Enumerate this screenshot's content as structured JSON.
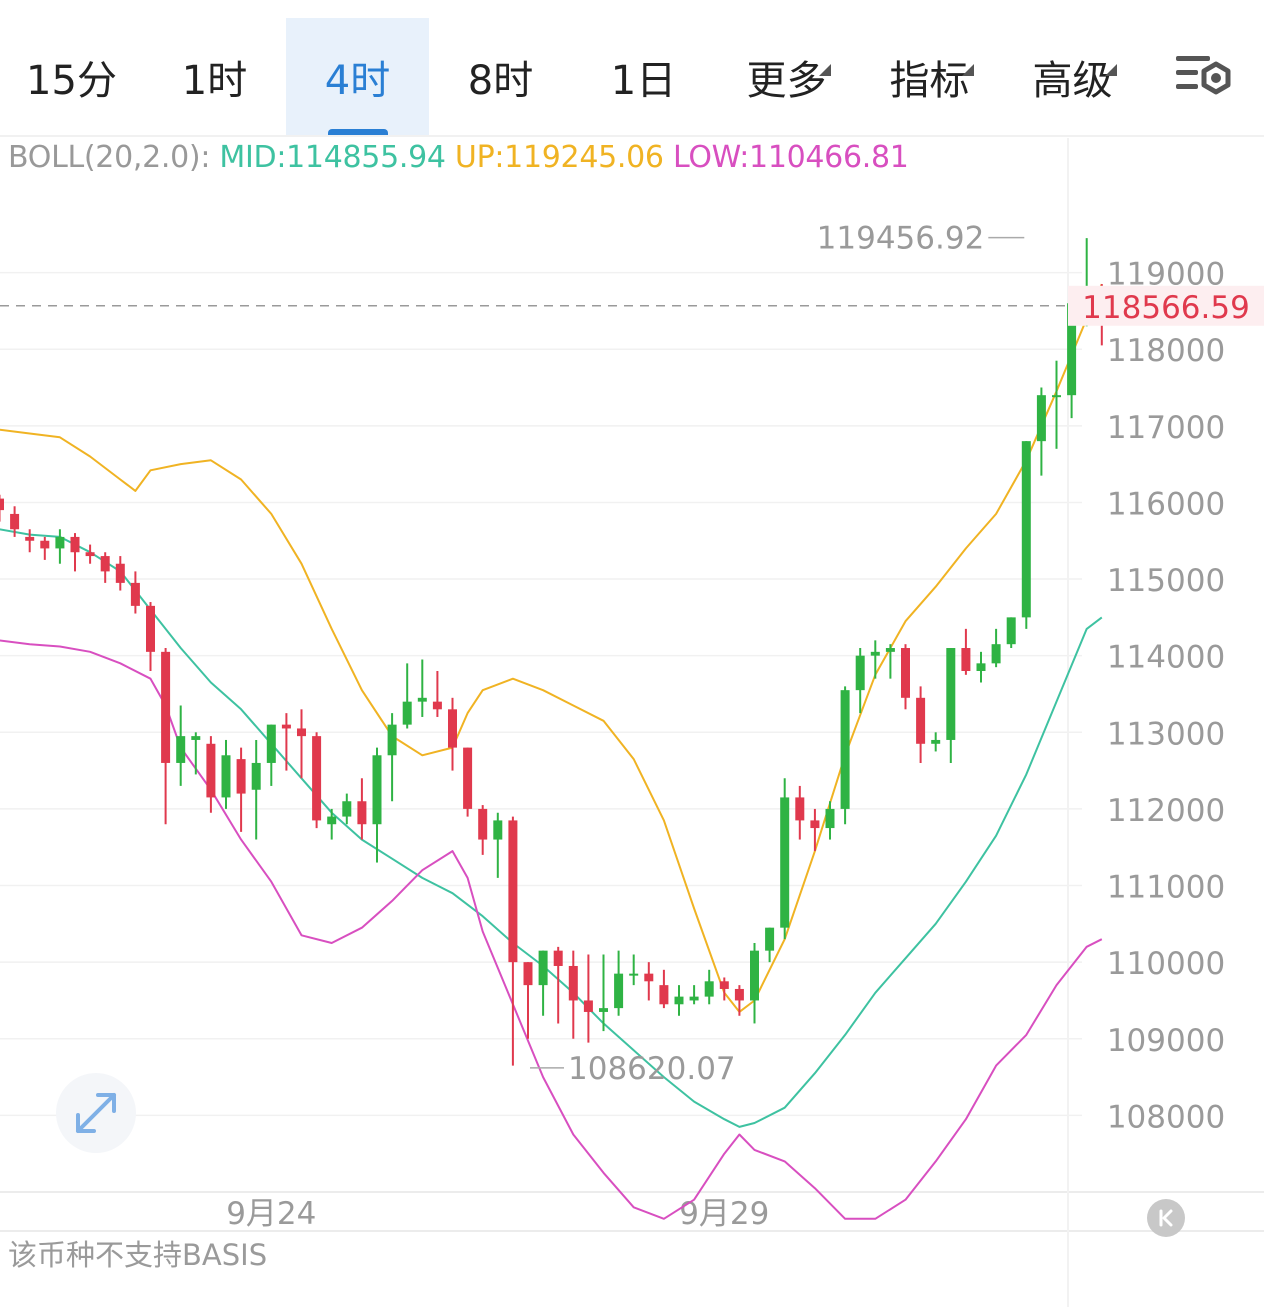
{
  "tabs": [
    {
      "label": "15分",
      "active": false,
      "dropdown": false
    },
    {
      "label": "1时",
      "active": false,
      "dropdown": false
    },
    {
      "label": "4时",
      "active": true,
      "dropdown": false
    },
    {
      "label": "8时",
      "active": false,
      "dropdown": false
    },
    {
      "label": "1日",
      "active": false,
      "dropdown": false
    },
    {
      "label": "更多",
      "active": false,
      "dropdown": true
    },
    {
      "label": "指标",
      "active": false,
      "dropdown": true
    },
    {
      "label": "高级",
      "active": false,
      "dropdown": true
    }
  ],
  "settings_icon": "chart-settings-icon",
  "indicator": {
    "name": "BOLL(20,2.0):",
    "mid_label": "MID:114855.94",
    "up_label": "UP:119245.06",
    "low_label": "LOW:110466.81"
  },
  "colors": {
    "up": "#2fb344",
    "down": "#e0394d",
    "mid": "#3ec2a1",
    "upper": "#f0b323",
    "lower": "#d84fc0",
    "current_price": "#e0394d",
    "accent": "#2a7fd4"
  },
  "footer_note": "该币种不支持BASIS",
  "chart_data": {
    "type": "candlestick",
    "interval": "4时",
    "ylim": [
      107000,
      120600
    ],
    "y_ticks": [
      108000,
      109000,
      110000,
      111000,
      112000,
      113000,
      114000,
      115000,
      116000,
      117000,
      118000,
      119000
    ],
    "y_tick_labels": [
      "108000",
      "109000",
      "110000",
      "111000",
      "112000",
      "113000",
      "114000",
      "115000",
      "116000",
      "117000",
      "118000",
      "119000"
    ],
    "x_labels": [
      {
        "index": 18,
        "label": "9月24"
      },
      {
        "index": 48,
        "label": "9月29"
      }
    ],
    "current_price": 118566.59,
    "current_price_label": "118566.59",
    "high_marker": {
      "index": 68,
      "value": 119456.92,
      "label": "119456.92"
    },
    "low_marker": {
      "index": 35,
      "value": 108620.07,
      "label": "108620.07"
    },
    "candles": [
      [
        116050,
        115900,
        116100,
        115750
      ],
      [
        115850,
        115650,
        115950,
        115550
      ],
      [
        115550,
        115500,
        115650,
        115350
      ],
      [
        115500,
        115400,
        115550,
        115250
      ],
      [
        115400,
        115550,
        115650,
        115200
      ],
      [
        115550,
        115350,
        115600,
        115100
      ],
      [
        115350,
        115300,
        115450,
        115200
      ],
      [
        115300,
        115100,
        115350,
        114950
      ],
      [
        115200,
        114950,
        115300,
        114850
      ],
      [
        114950,
        114650,
        115100,
        114550
      ],
      [
        114650,
        114050,
        114700,
        113800
      ],
      [
        114050,
        112600,
        114100,
        111800
      ],
      [
        112600,
        112950,
        113350,
        112300
      ],
      [
        112900,
        112950,
        113000,
        112450
      ],
      [
        112850,
        112150,
        112950,
        111950
      ],
      [
        112150,
        112700,
        112900,
        112000
      ],
      [
        112650,
        112200,
        112800,
        111700
      ],
      [
        112250,
        112600,
        112900,
        111600
      ],
      [
        112600,
        113100,
        113100,
        112300
      ],
      [
        113100,
        113050,
        113250,
        112500
      ],
      [
        113050,
        112950,
        113300,
        112400
      ],
      [
        112950,
        111850,
        113000,
        111750
      ],
      [
        111800,
        111900,
        112000,
        111600
      ],
      [
        111900,
        112100,
        112200,
        111800
      ],
      [
        112100,
        111800,
        112400,
        111600
      ],
      [
        111800,
        112700,
        112800,
        111300
      ],
      [
        112700,
        113100,
        113250,
        112100
      ],
      [
        113100,
        113400,
        113900,
        113050
      ],
      [
        113400,
        113450,
        113950,
        113200
      ],
      [
        113400,
        113300,
        113800,
        113200
      ],
      [
        113300,
        112800,
        113450,
        112500
      ],
      [
        112800,
        112000,
        112800,
        111900
      ],
      [
        112000,
        111600,
        112050,
        111400
      ],
      [
        111600,
        111850,
        111950,
        111100
      ],
      [
        111850,
        110000,
        111900,
        108650
      ],
      [
        110000,
        109700,
        110000,
        109000
      ],
      [
        109700,
        110150,
        110150,
        109300
      ],
      [
        110150,
        109950,
        110200,
        109200
      ],
      [
        109950,
        109500,
        110150,
        109000
      ],
      [
        109500,
        109350,
        110100,
        108950
      ],
      [
        109350,
        109400,
        110100,
        109100
      ],
      [
        109400,
        109850,
        110150,
        109300
      ],
      [
        109850,
        109850,
        110100,
        109700
      ],
      [
        109850,
        109750,
        110000,
        109500
      ],
      [
        109700,
        109450,
        109900,
        109400
      ],
      [
        109450,
        109550,
        109700,
        109300
      ],
      [
        109500,
        109550,
        109700,
        109450
      ],
      [
        109550,
        109750,
        109900,
        109450
      ],
      [
        109750,
        109650,
        109800,
        109500
      ],
      [
        109650,
        109500,
        109700,
        109300
      ],
      [
        109500,
        110150,
        110250,
        109200
      ],
      [
        110150,
        110450,
        110450,
        110000
      ],
      [
        110450,
        112150,
        112400,
        110300
      ],
      [
        112150,
        111850,
        112300,
        111600
      ],
      [
        111850,
        111750,
        112000,
        111450
      ],
      [
        111750,
        112000,
        112100,
        111600
      ],
      [
        112000,
        113550,
        113600,
        111800
      ],
      [
        113550,
        114000,
        114100,
        113250
      ],
      [
        114000,
        114050,
        114200,
        113700
      ],
      [
        114050,
        114100,
        114150,
        113700
      ],
      [
        114100,
        113450,
        114150,
        113300
      ],
      [
        113450,
        112850,
        113600,
        112600
      ],
      [
        112850,
        112900,
        113000,
        112750
      ],
      [
        112900,
        114100,
        114100,
        112600
      ],
      [
        114100,
        113800,
        114350,
        113750
      ],
      [
        113800,
        113900,
        114050,
        113650
      ],
      [
        113900,
        114150,
        114350,
        113850
      ],
      [
        114150,
        114500,
        114500,
        114100
      ],
      [
        114500,
        116800,
        116800,
        114350
      ],
      [
        116800,
        117400,
        117500,
        116350
      ],
      [
        117400,
        117400,
        117850,
        116700
      ],
      [
        117400,
        118600,
        118600,
        117100
      ],
      [
        118500,
        118650,
        119450,
        118300
      ],
      [
        118650,
        118550,
        118850,
        118050
      ]
    ],
    "mid": [
      [
        0,
        115650
      ],
      [
        2,
        115580
      ],
      [
        4,
        115550
      ],
      [
        6,
        115350
      ],
      [
        8,
        115100
      ],
      [
        10,
        114600
      ],
      [
        12,
        114100
      ],
      [
        14,
        113650
      ],
      [
        16,
        113300
      ],
      [
        18,
        112850
      ],
      [
        20,
        112400
      ],
      [
        22,
        111950
      ],
      [
        24,
        111600
      ],
      [
        26,
        111350
      ],
      [
        28,
        111100
      ],
      [
        30,
        110900
      ],
      [
        32,
        110600
      ],
      [
        34,
        110250
      ],
      [
        36,
        109950
      ],
      [
        38,
        109600
      ],
      [
        40,
        109200
      ],
      [
        42,
        108850
      ],
      [
        44,
        108500
      ],
      [
        46,
        108180
      ],
      [
        48,
        107950
      ],
      [
        49,
        107850
      ],
      [
        50,
        107900
      ],
      [
        52,
        108100
      ],
      [
        54,
        108550
      ],
      [
        56,
        109050
      ],
      [
        58,
        109600
      ],
      [
        60,
        110050
      ],
      [
        62,
        110500
      ],
      [
        64,
        111050
      ],
      [
        66,
        111650
      ],
      [
        68,
        112450
      ],
      [
        70,
        113400
      ],
      [
        72,
        114350
      ],
      [
        73,
        114500
      ]
    ],
    "upper": [
      [
        0,
        116950
      ],
      [
        2,
        116900
      ],
      [
        4,
        116850
      ],
      [
        6,
        116600
      ],
      [
        8,
        116300
      ],
      [
        9,
        116150
      ],
      [
        10,
        116420
      ],
      [
        12,
        116500
      ],
      [
        14,
        116550
      ],
      [
        16,
        116300
      ],
      [
        18,
        115850
      ],
      [
        20,
        115200
      ],
      [
        22,
        114350
      ],
      [
        24,
        113550
      ],
      [
        26,
        112950
      ],
      [
        28,
        112700
      ],
      [
        30,
        112800
      ],
      [
        31,
        113250
      ],
      [
        32,
        113550
      ],
      [
        34,
        113700
      ],
      [
        36,
        113550
      ],
      [
        38,
        113350
      ],
      [
        40,
        113150
      ],
      [
        42,
        112650
      ],
      [
        44,
        111850
      ],
      [
        46,
        110700
      ],
      [
        48,
        109600
      ],
      [
        49,
        109350
      ],
      [
        50,
        109500
      ],
      [
        52,
        110300
      ],
      [
        54,
        111450
      ],
      [
        56,
        112700
      ],
      [
        58,
        113750
      ],
      [
        60,
        114450
      ],
      [
        62,
        114900
      ],
      [
        64,
        115400
      ],
      [
        66,
        115850
      ],
      [
        68,
        116550
      ],
      [
        70,
        117450
      ],
      [
        72,
        118400
      ],
      [
        73,
        118850
      ]
    ],
    "lower": [
      [
        0,
        114200
      ],
      [
        2,
        114150
      ],
      [
        4,
        114120
      ],
      [
        6,
        114050
      ],
      [
        8,
        113900
      ],
      [
        10,
        113700
      ],
      [
        11,
        113350
      ],
      [
        12,
        112800
      ],
      [
        14,
        112250
      ],
      [
        16,
        111600
      ],
      [
        18,
        111050
      ],
      [
        20,
        110350
      ],
      [
        22,
        110250
      ],
      [
        24,
        110450
      ],
      [
        26,
        110800
      ],
      [
        28,
        111200
      ],
      [
        30,
        111450
      ],
      [
        31,
        111100
      ],
      [
        32,
        110400
      ],
      [
        34,
        109450
      ],
      [
        36,
        108500
      ],
      [
        38,
        107750
      ],
      [
        40,
        107250
      ],
      [
        42,
        106800
      ],
      [
        44,
        106650
      ],
      [
        46,
        106900
      ],
      [
        48,
        107500
      ],
      [
        49,
        107750
      ],
      [
        50,
        107550
      ],
      [
        52,
        107400
      ],
      [
        54,
        107050
      ],
      [
        56,
        106650
      ],
      [
        58,
        106650
      ],
      [
        60,
        106900
      ],
      [
        62,
        107400
      ],
      [
        64,
        107950
      ],
      [
        66,
        108650
      ],
      [
        68,
        109050
      ],
      [
        70,
        109700
      ],
      [
        72,
        110200
      ],
      [
        73,
        110300
      ]
    ]
  }
}
